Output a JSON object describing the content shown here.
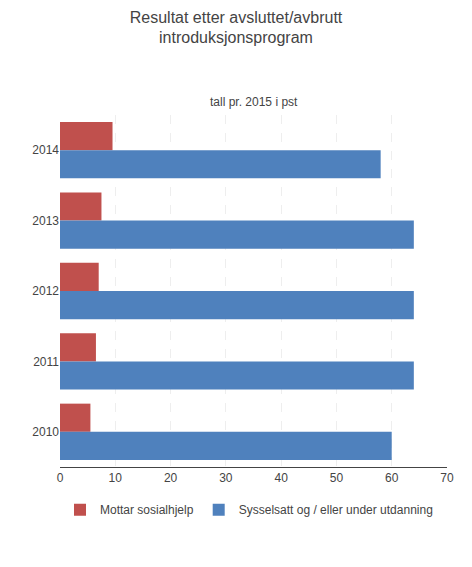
{
  "chart_data": {
    "type": "bar",
    "orientation": "horizontal",
    "title": "Resultat etter avsluttet/avbrutt\nintroduksjonsprogram",
    "subtitle": "tall pr. 2015 i pst",
    "categories": [
      "2014",
      "2013",
      "2012",
      "2011",
      "2010"
    ],
    "series": [
      {
        "name": "Mottar sosialhjelp",
        "color": "#C0504D",
        "values": [
          9.5,
          7.5,
          7.0,
          6.5,
          5.5
        ]
      },
      {
        "name": "Sysselsatt og / eller under utdanning",
        "color": "#4F81BD",
        "values": [
          58,
          64,
          64,
          64,
          60
        ]
      }
    ],
    "xlim": [
      0,
      70
    ],
    "xticks": [
      0,
      10,
      20,
      30,
      40,
      50,
      60,
      70
    ],
    "grid": true,
    "legend": "bottom"
  }
}
